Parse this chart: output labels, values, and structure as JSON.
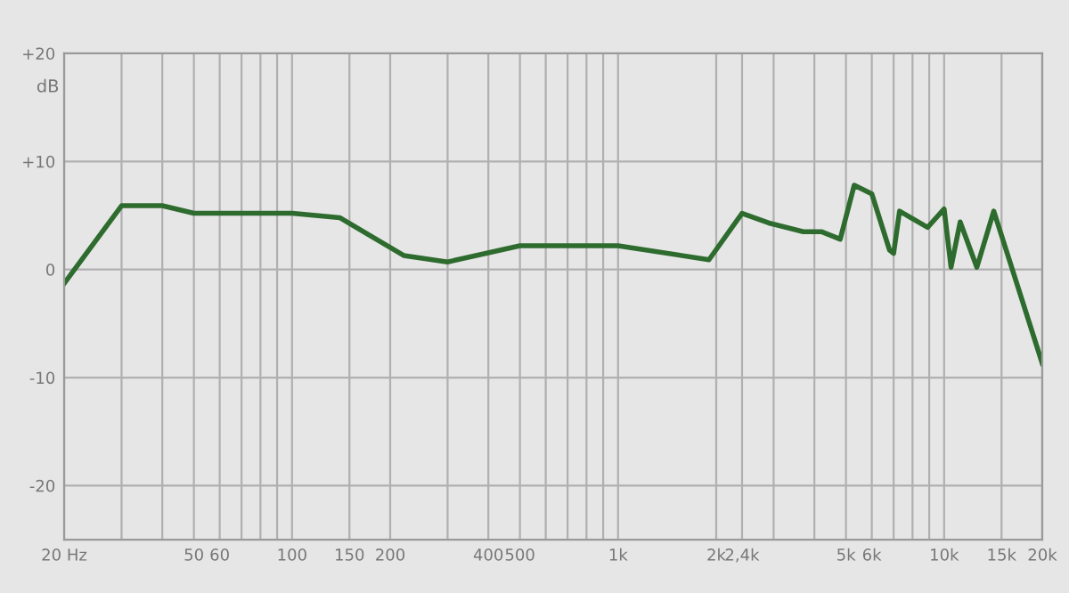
{
  "chart_data": {
    "type": "line",
    "ylabel": "dB",
    "log": "x",
    "grid": true,
    "marker": "none",
    "line_style": "solid",
    "xlim": [
      20,
      20000
    ],
    "ylim": [
      -25,
      20
    ],
    "xticks": [
      {
        "value": 20,
        "label": "20 Hz"
      },
      {
        "value": 30,
        "label": null
      },
      {
        "value": 40,
        "label": null
      },
      50,
      60,
      {
        "value": 70,
        "label": null
      },
      {
        "value": 80,
        "label": null
      },
      {
        "value": 90,
        "label": null
      },
      100,
      150,
      200,
      {
        "value": 300,
        "label": null
      },
      400,
      500,
      {
        "value": 600,
        "label": null
      },
      {
        "value": 700,
        "label": null
      },
      {
        "value": 800,
        "label": null
      },
      {
        "value": 900,
        "label": null
      },
      {
        "value": 1000,
        "label": "1k"
      },
      {
        "value": 2000,
        "label": "2k"
      },
      {
        "value": 2400,
        "label": "2,4k"
      },
      {
        "value": 3000,
        "label": null
      },
      {
        "value": 4000,
        "label": null
      },
      {
        "value": 5000,
        "label": "5k"
      },
      {
        "value": 6000,
        "label": "6k"
      },
      {
        "value": 7000,
        "label": null
      },
      {
        "value": 8000,
        "label": null
      },
      {
        "value": 9000,
        "label": null
      },
      {
        "value": 10000,
        "label": "10k"
      },
      {
        "value": 15000,
        "label": "15k"
      },
      {
        "value": 20000,
        "label": "20k"
      }
    ],
    "yticks": [
      {
        "value": 20,
        "label": "+20"
      },
      {
        "value": 10,
        "label": "+10"
      },
      0,
      -10,
      -20
    ],
    "x": [
      20,
      30,
      40,
      50,
      100,
      140,
      220,
      300,
      500,
      1000,
      1900,
      2400,
      2900,
      3700,
      4200,
      4800,
      5300,
      6000,
      6800,
      7000,
      7300,
      8900,
      10000,
      10500,
      11200,
      12600,
      14200,
      20000
    ],
    "series": [
      {
        "color": "#2e6b2e",
        "values": [
          -1.3,
          5.9,
          5.9,
          5.2,
          5.2,
          4.8,
          1.3,
          0.7,
          2.2,
          2.2,
          0.9,
          5.2,
          4.3,
          3.5,
          3.5,
          2.8,
          7.8,
          7.0,
          1.8,
          1.5,
          5.4,
          3.9,
          5.6,
          0.2,
          4.4,
          0.2,
          5.4,
          -8.7
        ]
      }
    ]
  }
}
